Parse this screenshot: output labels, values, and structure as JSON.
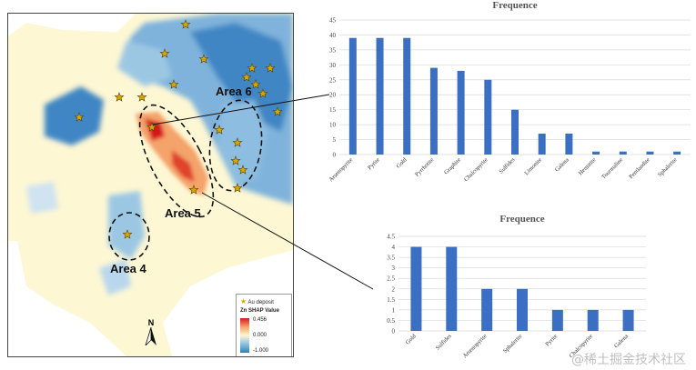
{
  "map": {
    "areas": [
      "Area 6",
      "Area 5",
      "Area 4"
    ],
    "legend": {
      "deposit_label": "Au deposit",
      "title": "Zn SHAP Value",
      "max": "0.456",
      "mid": "0.000",
      "min": "-1.000"
    },
    "north_label": "N",
    "colors": {
      "positive": "#d7191c",
      "neutral": "#fdf7d4",
      "negative": "#2b83ba",
      "deposit": "#d9a800"
    }
  },
  "chart_data": [
    {
      "type": "bar",
      "title": "Frequence",
      "categories": [
        "Arsenopyrite",
        "Pyrite",
        "Gold",
        "Pyrrhotite",
        "Graphite",
        "Chalcopyrite",
        "Sulfides",
        "Limonite",
        "Galena",
        "Hematite",
        "Tourmaline",
        "Pentlandite",
        "Sphalerite"
      ],
      "values": [
        39,
        39,
        39,
        29,
        28,
        25,
        15,
        7,
        7,
        1,
        1,
        1,
        1
      ],
      "ylim": [
        0,
        45
      ],
      "yticks": [
        "0",
        "5",
        "10",
        "15",
        "20",
        "25",
        "30",
        "35",
        "40",
        "45"
      ],
      "color": "#3a6fc4",
      "grid": true
    },
    {
      "type": "bar",
      "title": "Frequence",
      "categories": [
        "Gold",
        "Sulfides",
        "Arsenopyrite",
        "Sphalerite",
        "Pyrite",
        "Chalcopyrite",
        "Galena"
      ],
      "values": [
        4,
        4,
        2,
        2,
        1,
        1,
        1
      ],
      "ylim": [
        0,
        4.5
      ],
      "yticks": [
        "0",
        "0.5",
        "1",
        "1.5",
        "2",
        "2.5",
        "3",
        "3.5",
        "4",
        "4.5"
      ],
      "color": "#3a6fc4",
      "grid": true
    }
  ],
  "watermark": "@稀土掘金技术社区"
}
